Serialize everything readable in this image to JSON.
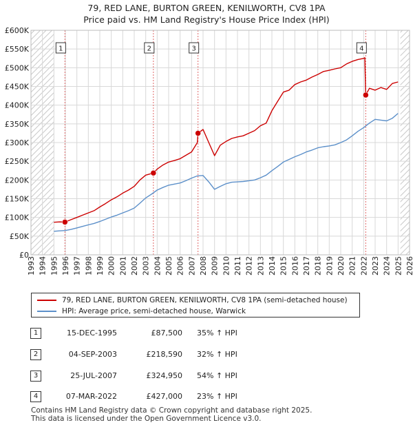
{
  "title": {
    "line1": "79, RED LANE, BURTON GREEN, KENILWORTH, CV8 1PA",
    "line2": "Price paid vs. HM Land Registry's House Price Index (HPI)"
  },
  "colors": {
    "property": "#cc0000",
    "hpi": "#5b8fc9",
    "grid": "#d8d8d8",
    "vline": "#e06666"
  },
  "legend": {
    "property_label": "79, RED LANE, BURTON GREEN, KENILWORTH, CV8 1PA (semi-detached house)",
    "hpi_label": "HPI: Average price, semi-detached house, Warwick"
  },
  "sales": [
    {
      "num": "1",
      "date": "15-DEC-1995",
      "price": "£87,500",
      "hpi_change": "35% ↑ HPI"
    },
    {
      "num": "2",
      "date": "04-SEP-2003",
      "price": "£218,590",
      "hpi_change": "32% ↑ HPI"
    },
    {
      "num": "3",
      "date": "25-JUL-2007",
      "price": "£324,950",
      "hpi_change": "54% ↑ HPI"
    },
    {
      "num": "4",
      "date": "07-MAR-2022",
      "price": "£427,000",
      "hpi_change": "23% ↑ HPI"
    }
  ],
  "footer": {
    "line1": "Contains HM Land Registry data © Crown copyright and database right 2025.",
    "line2": "This data is licensed under the Open Government Licence v3.0."
  },
  "chart_data": {
    "type": "line",
    "title": "79, RED LANE, BURTON GREEN, KENILWORTH, CV8 1PA — Price paid vs. HM Land Registry's House Price Index (HPI)",
    "xlabel": "",
    "ylabel": "",
    "xlim": [
      1993,
      2026
    ],
    "ylim": [
      0,
      600000
    ],
    "x_ticks": [
      "1993",
      "1994",
      "1995",
      "1996",
      "1997",
      "1998",
      "1999",
      "2000",
      "2001",
      "2002",
      "2003",
      "2004",
      "2005",
      "2006",
      "2007",
      "2008",
      "2009",
      "2010",
      "2011",
      "2012",
      "2013",
      "2014",
      "2015",
      "2016",
      "2017",
      "2018",
      "2019",
      "2020",
      "2021",
      "2022",
      "2023",
      "2024",
      "2025",
      "2026"
    ],
    "y_ticks": [
      {
        "value": 0,
        "label": "£0"
      },
      {
        "value": 50000,
        "label": "£50K"
      },
      {
        "value": 100000,
        "label": "£100K"
      },
      {
        "value": 150000,
        "label": "£150K"
      },
      {
        "value": 200000,
        "label": "£200K"
      },
      {
        "value": 250000,
        "label": "£250K"
      },
      {
        "value": 300000,
        "label": "£300K"
      },
      {
        "value": 350000,
        "label": "£350K"
      },
      {
        "value": 400000,
        "label": "£400K"
      },
      {
        "value": 450000,
        "label": "£450K"
      },
      {
        "value": 500000,
        "label": "£500K"
      },
      {
        "value": 550000,
        "label": "£550K"
      },
      {
        "value": 600000,
        "label": "£600K"
      }
    ],
    "hatched_ranges": [
      [
        1993,
        1995.0
      ],
      [
        2025.2,
        2026
      ]
    ],
    "sale_markers": [
      {
        "label": "1",
        "x": 1995.96,
        "y": 87500
      },
      {
        "label": "2",
        "x": 2003.67,
        "y": 218590
      },
      {
        "label": "3",
        "x": 2007.56,
        "y": 324950
      },
      {
        "label": "4",
        "x": 2022.18,
        "y": 427000
      }
    ],
    "series": [
      {
        "name": "79, RED LANE, BURTON GREEN, KENILWORTH, CV8 1PA (semi-detached house)",
        "color": "#cc0000",
        "x": [
          1995.0,
          1995.5,
          1995.96,
          1996.5,
          1997.0,
          1997.5,
          1998.0,
          1998.5,
          1999.0,
          1999.5,
          2000.0,
          2000.5,
          2001.0,
          2001.5,
          2002.0,
          2002.5,
          2003.0,
          2003.67,
          2004.0,
          2004.5,
          2005.0,
          2005.5,
          2006.0,
          2006.5,
          2007.0,
          2007.5,
          2007.56,
          2008.0,
          2008.5,
          2009.0,
          2009.5,
          2010.0,
          2010.5,
          2011.0,
          2011.5,
          2012.0,
          2012.5,
          2013.0,
          2013.5,
          2014.0,
          2014.5,
          2015.0,
          2015.5,
          2016.0,
          2016.5,
          2017.0,
          2017.5,
          2018.0,
          2018.5,
          2019.0,
          2019.5,
          2020.0,
          2020.5,
          2021.0,
          2021.5,
          2022.0,
          2022.1,
          2022.18,
          2022.5,
          2023.0,
          2023.5,
          2024.0,
          2024.5,
          2025.0
        ],
        "y": [
          87000,
          88000,
          87500,
          94000,
          100000,
          106000,
          112000,
          118000,
          128000,
          137000,
          147000,
          155000,
          165000,
          173000,
          183000,
          200000,
          213000,
          218590,
          229000,
          240000,
          248000,
          252000,
          257000,
          266000,
          275000,
          300000,
          324950,
          335000,
          300000,
          265000,
          293000,
          303000,
          311000,
          315000,
          318000,
          325000,
          332000,
          345000,
          352000,
          385000,
          410000,
          435000,
          440000,
          455000,
          462000,
          467000,
          475000,
          482000,
          490000,
          493000,
          497000,
          500000,
          510000,
          517000,
          522000,
          525000,
          527000,
          427000,
          445000,
          440000,
          447000,
          442000,
          458000,
          462000
        ]
      },
      {
        "name": "HPI: Average price, semi-detached house, Warwick",
        "color": "#5b8fc9",
        "x": [
          1995.0,
          1995.5,
          1996.0,
          1996.5,
          1997.0,
          1997.5,
          1998.0,
          1998.5,
          1999.0,
          1999.5,
          2000.0,
          2000.5,
          2001.0,
          2001.5,
          2002.0,
          2002.5,
          2003.0,
          2003.5,
          2004.0,
          2004.5,
          2005.0,
          2005.5,
          2006.0,
          2006.5,
          2007.0,
          2007.5,
          2008.0,
          2008.5,
          2009.0,
          2009.5,
          2010.0,
          2010.5,
          2011.0,
          2011.5,
          2012.0,
          2012.5,
          2013.0,
          2013.5,
          2014.0,
          2014.5,
          2015.0,
          2015.5,
          2016.0,
          2016.5,
          2017.0,
          2017.5,
          2018.0,
          2018.5,
          2019.0,
          2019.5,
          2020.0,
          2020.5,
          2021.0,
          2021.5,
          2022.0,
          2022.5,
          2023.0,
          2023.5,
          2024.0,
          2024.5,
          2025.0
        ],
        "y": [
          63000,
          64000,
          65000,
          68000,
          72000,
          76000,
          80000,
          84000,
          89000,
          95000,
          101000,
          106000,
          112000,
          118000,
          125000,
          138000,
          152000,
          162000,
          173000,
          180000,
          186000,
          189000,
          192000,
          198000,
          205000,
          211000,
          212000,
          195000,
          175000,
          183000,
          190000,
          194000,
          195000,
          196000,
          198000,
          200000,
          206000,
          213000,
          225000,
          236000,
          248000,
          255000,
          262000,
          268000,
          275000,
          280000,
          286000,
          289000,
          291000,
          294000,
          300000,
          307000,
          318000,
          330000,
          340000,
          352000,
          362000,
          360000,
          358000,
          365000,
          378000
        ]
      }
    ]
  }
}
